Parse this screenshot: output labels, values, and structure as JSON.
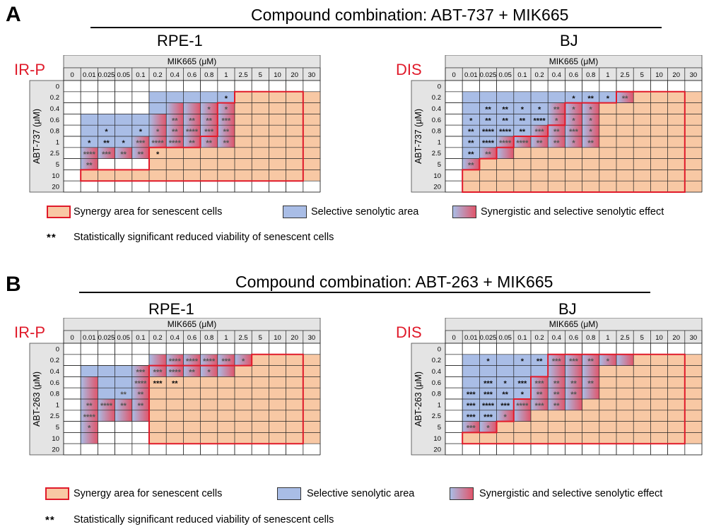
{
  "panels": [
    {
      "letter": "A",
      "title": "Compound combination: ABT-737 + MIK665"
    },
    {
      "letter": "B",
      "title": "Compound combination: ABT-263 + MIK665"
    }
  ],
  "legend": {
    "synergy": "Synergy area for senescent cells",
    "selective": "Selective senolytic area",
    "both": "Synergistic and selective senolytic effect",
    "stars": "**",
    "significance": "Statistically significant reduced viability of senescent cells"
  },
  "colors": {
    "synergy_fill": "#f8c8a4",
    "synergy_border": "#e01a2a",
    "selective_fill": "#a9bde6",
    "blend_end": "#e0556a",
    "header_fill": "#e4e4e4",
    "label_red": "#e01a2a"
  },
  "chart_data": [
    {
      "type": "heatmap",
      "panel": "A",
      "cell_line": "RPE-1",
      "condition": "IR-P",
      "xlabel": "MIK665 (μM)",
      "ylabel": "ABT-737 (μM)",
      "x": [
        "0",
        "0.01",
        "0.025",
        "0.05",
        "0.1",
        "0.2",
        "0.4",
        "0.6",
        "0.8",
        "1",
        "2.5",
        "5",
        "10",
        "20",
        "30"
      ],
      "y": [
        "0",
        "0.2",
        "0.4",
        "0.6",
        "0.8",
        "1",
        "2.5",
        "5",
        "10",
        "20"
      ],
      "synergy_start": [
        null,
        10,
        9,
        9,
        9,
        8,
        5,
        5,
        1,
        null
      ],
      "selective_cols": [
        [],
        [
          5,
          9
        ],
        [
          5,
          9
        ],
        [
          1,
          9
        ],
        [
          1,
          9
        ],
        [
          1,
          9
        ],
        [
          1,
          4
        ],
        [
          1,
          1
        ],
        [],
        []
      ],
      "both_cols": [
        [],
        [],
        [
          6,
          9
        ],
        [
          5,
          9
        ],
        [
          5,
          9
        ],
        [
          4,
          9
        ],
        [
          1,
          4
        ],
        [
          1,
          1
        ],
        [],
        []
      ],
      "stars": [
        [],
        [
          {
            "c": 9,
            "s": "*"
          }
        ],
        [
          {
            "c": 8,
            "s": "*"
          },
          {
            "c": 9,
            "s": "*"
          }
        ],
        [
          {
            "c": 6,
            "s": "**"
          },
          {
            "c": 7,
            "s": "**"
          },
          {
            "c": 8,
            "s": "**"
          },
          {
            "c": 9,
            "s": "***"
          }
        ],
        [
          {
            "c": 2,
            "s": "*"
          },
          {
            "c": 4,
            "s": "*"
          },
          {
            "c": 5,
            "s": "*"
          },
          {
            "c": 6,
            "s": "**"
          },
          {
            "c": 7,
            "s": "****"
          },
          {
            "c": 8,
            "s": "***"
          },
          {
            "c": 9,
            "s": "**"
          }
        ],
        [
          {
            "c": 1,
            "s": "*"
          },
          {
            "c": 2,
            "s": "**"
          },
          {
            "c": 3,
            "s": "*"
          },
          {
            "c": 4,
            "s": "***"
          },
          {
            "c": 5,
            "s": "****"
          },
          {
            "c": 6,
            "s": "****"
          },
          {
            "c": 7,
            "s": "**"
          },
          {
            "c": 8,
            "s": "**"
          },
          {
            "c": 9,
            "s": "**"
          }
        ],
        [
          {
            "c": 1,
            "s": "****"
          },
          {
            "c": 2,
            "s": "***"
          },
          {
            "c": 3,
            "s": "**"
          },
          {
            "c": 4,
            "s": "**"
          },
          {
            "c": 5,
            "s": "*"
          }
        ],
        [
          {
            "c": 1,
            "s": "**"
          }
        ],
        [],
        []
      ]
    },
    {
      "type": "heatmap",
      "panel": "A",
      "cell_line": "BJ",
      "condition": "DIS",
      "xlabel": "MIK665 (μM)",
      "ylabel": "ABT-737 (μM)",
      "x": [
        "0",
        "0.01",
        "0.025",
        "0.05",
        "0.1",
        "0.2",
        "0.4",
        "0.6",
        "0.8",
        "1",
        "2.5",
        "5",
        "10",
        "20",
        "30"
      ],
      "y": [
        "0",
        "0.2",
        "0.4",
        "0.6",
        "0.8",
        "1",
        "2.5",
        "5",
        "10",
        "20"
      ],
      "synergy_start": [
        null,
        10,
        7,
        7,
        6,
        4,
        3,
        2,
        1,
        1
      ],
      "selective_cols": [
        [],
        [
          1,
          10
        ],
        [
          1,
          8
        ],
        [
          1,
          8
        ],
        [
          1,
          8
        ],
        [
          1,
          8
        ],
        [
          1,
          3
        ],
        [
          1,
          1
        ],
        [],
        []
      ],
      "both_cols": [
        [],
        [
          10,
          10
        ],
        [
          6,
          8
        ],
        [
          6,
          8
        ],
        [
          5,
          8
        ],
        [
          3,
          8
        ],
        [
          2,
          3
        ],
        [
          1,
          1
        ],
        [],
        []
      ],
      "stars": [
        [],
        [
          {
            "c": 7,
            "s": "*"
          },
          {
            "c": 8,
            "s": "**"
          },
          {
            "c": 9,
            "s": "*"
          },
          {
            "c": 10,
            "s": "**"
          }
        ],
        [
          {
            "c": 2,
            "s": "**"
          },
          {
            "c": 3,
            "s": "**"
          },
          {
            "c": 4,
            "s": "*"
          },
          {
            "c": 5,
            "s": "*"
          },
          {
            "c": 6,
            "s": "**"
          },
          {
            "c": 7,
            "s": "*"
          },
          {
            "c": 8,
            "s": "*"
          }
        ],
        [
          {
            "c": 1,
            "s": "*"
          },
          {
            "c": 2,
            "s": "**"
          },
          {
            "c": 3,
            "s": "**"
          },
          {
            "c": 4,
            "s": "**"
          },
          {
            "c": 5,
            "s": "****"
          },
          {
            "c": 6,
            "s": "*"
          },
          {
            "c": 7,
            "s": "*"
          },
          {
            "c": 8,
            "s": "*"
          }
        ],
        [
          {
            "c": 1,
            "s": "**"
          },
          {
            "c": 2,
            "s": "****"
          },
          {
            "c": 3,
            "s": "****"
          },
          {
            "c": 4,
            "s": "**"
          },
          {
            "c": 5,
            "s": "***"
          },
          {
            "c": 6,
            "s": "**"
          },
          {
            "c": 7,
            "s": "***"
          },
          {
            "c": 8,
            "s": "*"
          }
        ],
        [
          {
            "c": 1,
            "s": "**"
          },
          {
            "c": 2,
            "s": "****"
          },
          {
            "c": 3,
            "s": "****"
          },
          {
            "c": 4,
            "s": "****"
          },
          {
            "c": 5,
            "s": "**"
          },
          {
            "c": 6,
            "s": "**"
          },
          {
            "c": 7,
            "s": "*"
          },
          {
            "c": 8,
            "s": "**"
          }
        ],
        [
          {
            "c": 1,
            "s": "**"
          },
          {
            "c": 2,
            "s": "**"
          }
        ],
        [
          {
            "c": 1,
            "s": "**"
          }
        ],
        [],
        []
      ]
    },
    {
      "type": "heatmap",
      "panel": "B",
      "cell_line": "RPE-1",
      "condition": "IR-P",
      "xlabel": "MIK665 (μM)",
      "ylabel": "ABT-263 (μM)",
      "x": [
        "0",
        "0.01",
        "0.025",
        "0.05",
        "0.1",
        "0.2",
        "0.4",
        "0.6",
        "0.8",
        "1",
        "2.5",
        "5",
        "10",
        "20",
        "30"
      ],
      "y": [
        "0",
        "0.2",
        "0.4",
        "0.6",
        "0.8",
        "1",
        "2.5",
        "5",
        "10",
        "20"
      ],
      "synergy_start": [
        null,
        11,
        5,
        5,
        5,
        5,
        5,
        5,
        5,
        null
      ],
      "selective_cols": [
        [],
        [
          5,
          10
        ],
        [
          1,
          9
        ],
        [
          1,
          4
        ],
        [
          1,
          4
        ],
        [
          1,
          4
        ],
        [
          1,
          4
        ],
        [
          1,
          1
        ],
        [
          1,
          1
        ],
        []
      ],
      "both_cols": [
        [],
        [
          5,
          10
        ],
        [
          4,
          9
        ],
        [
          1,
          4
        ],
        [
          1,
          4
        ],
        [
          1,
          4
        ],
        [
          1,
          4
        ],
        [
          1,
          1
        ],
        [
          1,
          1
        ],
        []
      ],
      "blue_override": [
        [],
        [],
        [
          [
            2,
            2
          ]
        ],
        [
          [
            2,
            3
          ]
        ],
        [
          [
            2,
            3
          ]
        ],
        [],
        [],
        [],
        [],
        []
      ],
      "stars": [
        [],
        [
          {
            "c": 6,
            "s": "****"
          },
          {
            "c": 7,
            "s": "****"
          },
          {
            "c": 8,
            "s": "****"
          },
          {
            "c": 9,
            "s": "***"
          },
          {
            "c": 10,
            "s": "*"
          }
        ],
        [
          {
            "c": 4,
            "s": "***"
          },
          {
            "c": 5,
            "s": "***"
          },
          {
            "c": 6,
            "s": "****"
          },
          {
            "c": 7,
            "s": "**"
          },
          {
            "c": 8,
            "s": "*"
          }
        ],
        [
          {
            "c": 4,
            "s": "****"
          },
          {
            "c": 5,
            "s": "***"
          },
          {
            "c": 6,
            "s": "**"
          }
        ],
        [
          {
            "c": 3,
            "s": "**"
          },
          {
            "c": 4,
            "s": "**"
          }
        ],
        [
          {
            "c": 1,
            "s": "**"
          },
          {
            "c": 2,
            "s": "****"
          },
          {
            "c": 3,
            "s": "**"
          },
          {
            "c": 4,
            "s": "**"
          }
        ],
        [
          {
            "c": 1,
            "s": "****"
          }
        ],
        [
          {
            "c": 1,
            "s": "*"
          }
        ],
        [],
        []
      ]
    },
    {
      "type": "heatmap",
      "panel": "B",
      "cell_line": "BJ",
      "condition": "DIS",
      "xlabel": "MIK665 (μM)",
      "ylabel": "ABT-263 (μM)",
      "x": [
        "0",
        "0.01",
        "0.025",
        "0.05",
        "0.1",
        "0.2",
        "0.4",
        "0.6",
        "0.8",
        "1",
        "2.5",
        "5",
        "10",
        "20",
        "30"
      ],
      "y": [
        "0",
        "0.2",
        "0.4",
        "0.6",
        "0.8",
        "1",
        "2.5",
        "5",
        "10",
        "20"
      ],
      "synergy_start": [
        null,
        6,
        6,
        5,
        5,
        4,
        4,
        3,
        1,
        null
      ],
      "selective_cols": [
        [],
        [
          1,
          10
        ],
        [
          1,
          8
        ],
        [
          1,
          8
        ],
        [
          1,
          8
        ],
        [
          1,
          7
        ],
        [
          1,
          4
        ],
        [
          1,
          2
        ],
        [],
        []
      ],
      "both_cols": [
        [],
        [
          6,
          10
        ],
        [
          6,
          8
        ],
        [
          5,
          8
        ],
        [
          5,
          8
        ],
        [
          4,
          7
        ],
        [
          3,
          4
        ],
        [
          1,
          2
        ],
        [],
        []
      ],
      "stars": [
        [],
        [
          {
            "c": 2,
            "s": "*"
          },
          {
            "c": 4,
            "s": "*"
          },
          {
            "c": 5,
            "s": "**"
          },
          {
            "c": 6,
            "s": "***"
          },
          {
            "c": 7,
            "s": "***"
          },
          {
            "c": 8,
            "s": "**"
          },
          {
            "c": 9,
            "s": "*"
          }
        ],
        [],
        [
          {
            "c": 2,
            "s": "***"
          },
          {
            "c": 3,
            "s": "*"
          },
          {
            "c": 4,
            "s": "***"
          },
          {
            "c": 5,
            "s": "***"
          },
          {
            "c": 6,
            "s": "**"
          },
          {
            "c": 7,
            "s": "**"
          },
          {
            "c": 8,
            "s": "**"
          }
        ],
        [
          {
            "c": 1,
            "s": "***"
          },
          {
            "c": 2,
            "s": "***"
          },
          {
            "c": 3,
            "s": "**"
          },
          {
            "c": 4,
            "s": "*"
          },
          {
            "c": 5,
            "s": "**"
          },
          {
            "c": 6,
            "s": "**"
          },
          {
            "c": 7,
            "s": "**"
          }
        ],
        [
          {
            "c": 1,
            "s": "***"
          },
          {
            "c": 2,
            "s": "****"
          },
          {
            "c": 3,
            "s": "***"
          },
          {
            "c": 4,
            "s": "****"
          },
          {
            "c": 5,
            "s": "***"
          },
          {
            "c": 6,
            "s": "**"
          }
        ],
        [
          {
            "c": 1,
            "s": "***"
          },
          {
            "c": 2,
            "s": "***"
          },
          {
            "c": 3,
            "s": "*"
          }
        ],
        [
          {
            "c": 1,
            "s": "***"
          },
          {
            "c": 2,
            "s": "*"
          }
        ],
        [],
        []
      ]
    }
  ]
}
